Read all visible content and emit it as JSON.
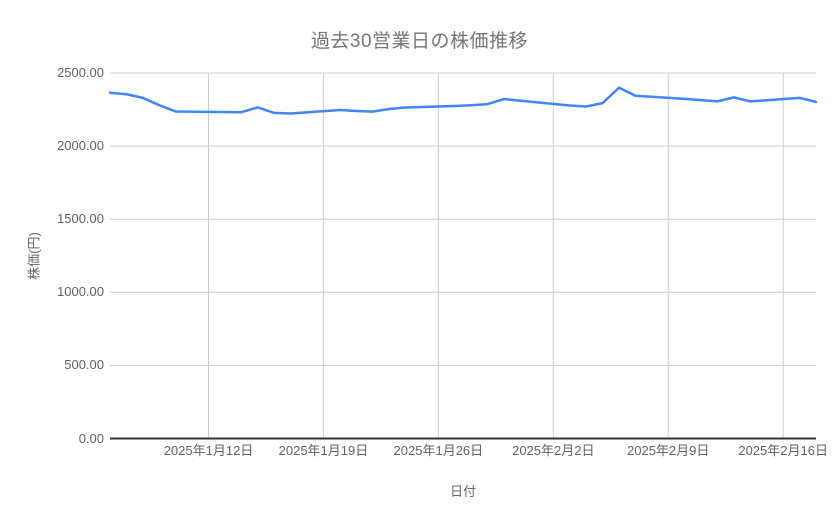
{
  "chart_data": {
    "type": "line",
    "title": "過去30営業日の株価推移",
    "xlabel": "日付",
    "ylabel": "株価(円)",
    "ylim": [
      0,
      2500
    ],
    "x_domain_days": [
      0,
      43
    ],
    "grid": true,
    "legend": "none",
    "line_color": "#4285f4",
    "gridline_color": "#cccccc",
    "baseline_color": "#333333",
    "title_color": "#757575",
    "tick_label_color": "#616161",
    "y_ticks": [
      {
        "label": "0.00",
        "value": 0
      },
      {
        "label": "500.00",
        "value": 500
      },
      {
        "label": "1000.00",
        "value": 1000
      },
      {
        "label": "1500.00",
        "value": 1500
      },
      {
        "label": "2000.00",
        "value": 2000
      },
      {
        "label": "2500.00",
        "value": 2500
      }
    ],
    "x_ticks": [
      {
        "label": "2025年1月12日",
        "day": 6
      },
      {
        "label": "2025年1月19日",
        "day": 13
      },
      {
        "label": "2025年1月26日",
        "day": 20
      },
      {
        "label": "2025年2月2日",
        "day": 27
      },
      {
        "label": "2025年2月9日",
        "day": 34
      },
      {
        "label": "2025年2月16日",
        "day": 41
      }
    ],
    "series": [
      {
        "name": "株価",
        "points": [
          {
            "date": "2025年1月6日",
            "day": 0,
            "value": 2365
          },
          {
            "date": "2025年1月7日",
            "day": 1,
            "value": 2355
          },
          {
            "date": "2025年1月8日",
            "day": 2,
            "value": 2330
          },
          {
            "date": "2025年1月9日",
            "day": 3,
            "value": 2280
          },
          {
            "date": "2025年1月10日",
            "day": 4,
            "value": 2237
          },
          {
            "date": "2025年1月14日",
            "day": 8,
            "value": 2232
          },
          {
            "date": "2025年1月15日",
            "day": 9,
            "value": 2265
          },
          {
            "date": "2025年1月16日",
            "day": 10,
            "value": 2227
          },
          {
            "date": "2025年1月17日",
            "day": 11,
            "value": 2223
          },
          {
            "date": "2025年1月20日",
            "day": 14,
            "value": 2247
          },
          {
            "date": "2025年1月21日",
            "day": 15,
            "value": 2240
          },
          {
            "date": "2025年1月22日",
            "day": 16,
            "value": 2236
          },
          {
            "date": "2025年1月23日",
            "day": 17,
            "value": 2254
          },
          {
            "date": "2025年1月24日",
            "day": 18,
            "value": 2264
          },
          {
            "date": "2025年1月27日",
            "day": 21,
            "value": 2274
          },
          {
            "date": "2025年1月28日",
            "day": 22,
            "value": 2280
          },
          {
            "date": "2025年1月29日",
            "day": 23,
            "value": 2287
          },
          {
            "date": "2025年1月30日",
            "day": 24,
            "value": 2322
          },
          {
            "date": "2025年1月31日",
            "day": 25,
            "value": 2310
          },
          {
            "date": "2025年2月3日",
            "day": 28,
            "value": 2278
          },
          {
            "date": "2025年2月4日",
            "day": 29,
            "value": 2271
          },
          {
            "date": "2025年2月5日",
            "day": 30,
            "value": 2294
          },
          {
            "date": "2025年2月6日",
            "day": 31,
            "value": 2400
          },
          {
            "date": "2025年2月7日",
            "day": 32,
            "value": 2345
          },
          {
            "date": "2025年2月10日",
            "day": 35,
            "value": 2323
          },
          {
            "date": "2025年2月12日",
            "day": 37,
            "value": 2306
          },
          {
            "date": "2025年2月13日",
            "day": 38,
            "value": 2333
          },
          {
            "date": "2025年2月14日",
            "day": 39,
            "value": 2306
          },
          {
            "date": "2025年2月17日",
            "day": 42,
            "value": 2330
          },
          {
            "date": "2025年2月18日",
            "day": 43,
            "value": 2302
          }
        ]
      }
    ]
  }
}
